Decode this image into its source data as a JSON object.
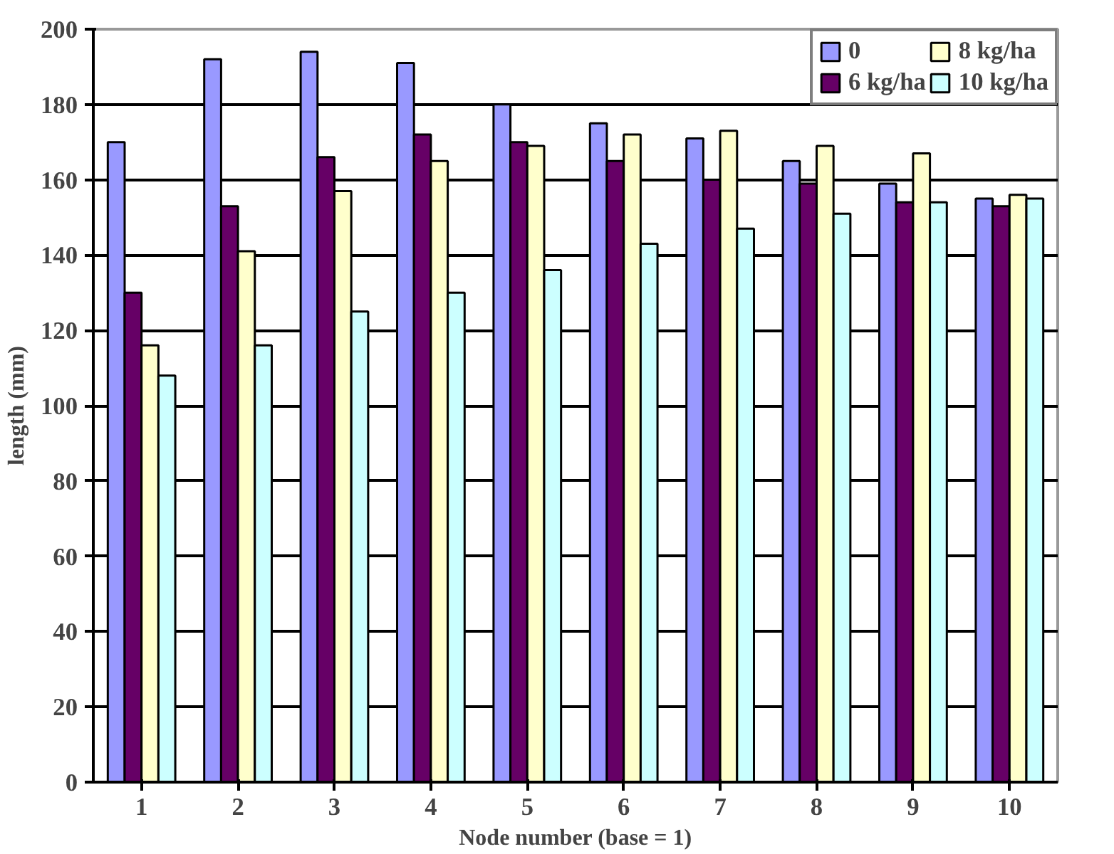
{
  "chart_data": {
    "type": "bar",
    "xlabel": "Node number (base = 1)",
    "ylabel": "length (mm)",
    "categories": [
      "1",
      "2",
      "3",
      "4",
      "5",
      "6",
      "7",
      "8",
      "9",
      "10"
    ],
    "series": [
      {
        "name": "0",
        "color": "#9999ff",
        "values": [
          170,
          192,
          194,
          191,
          180,
          175,
          171,
          165,
          159,
          155
        ]
      },
      {
        "name": "6 kg/ha",
        "color": "#660066",
        "values": [
          130,
          153,
          166,
          172,
          170,
          165,
          160,
          159,
          154,
          153
        ]
      },
      {
        "name": "8 kg/ha",
        "color": "#ffffcc",
        "values": [
          116,
          141,
          157,
          165,
          169,
          172,
          173,
          169,
          167,
          156
        ]
      },
      {
        "name": "10 kg/ha",
        "color": "#ccffff",
        "values": [
          108,
          116,
          125,
          130,
          136,
          143,
          147,
          151,
          154,
          155
        ]
      }
    ],
    "ylim": [
      0,
      200
    ],
    "yticks": [
      0,
      20,
      40,
      60,
      80,
      100,
      120,
      140,
      160,
      180,
      200
    ],
    "grid": "y",
    "legend": "top right"
  }
}
